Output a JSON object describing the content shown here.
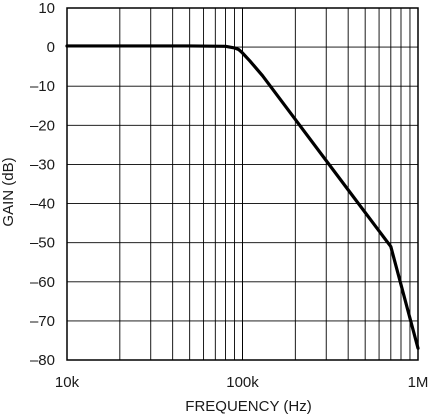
{
  "chart_data": {
    "type": "line",
    "title": "",
    "xlabel": "FREQUENCY (Hz)",
    "ylabel": "GAIN (dB)",
    "x_scale": "log",
    "xlim": [
      10000,
      1000000
    ],
    "ylim": [
      -80,
      10
    ],
    "x_ticks": [
      {
        "value": 10000,
        "label": "10k"
      },
      {
        "value": 100000,
        "label": "100k"
      },
      {
        "value": 1000000,
        "label": "1M"
      }
    ],
    "y_ticks": [
      {
        "value": 10,
        "label": "10"
      },
      {
        "value": 0,
        "label": "0"
      },
      {
        "value": -10,
        "label": "–10"
      },
      {
        "value": -20,
        "label": "–20"
      },
      {
        "value": -30,
        "label": "–30"
      },
      {
        "value": -40,
        "label": "–40"
      },
      {
        "value": -50,
        "label": "–50"
      },
      {
        "value": -60,
        "label": "–60"
      },
      {
        "value": -70,
        "label": "–70"
      },
      {
        "value": -80,
        "label": "–80"
      }
    ],
    "grid": true,
    "legend": "none",
    "series": [
      {
        "color": "#000000",
        "x": [
          10000,
          50000,
          80000,
          90000,
          95000,
          100000,
          110000,
          130000,
          200000,
          400000,
          700000,
          1000000
        ],
        "y": [
          0.3,
          0.3,
          0.2,
          -0.2,
          -0.6,
          -1.5,
          -3.5,
          -7.3,
          -18.5,
          -36.5,
          -51,
          -77
        ]
      }
    ]
  }
}
